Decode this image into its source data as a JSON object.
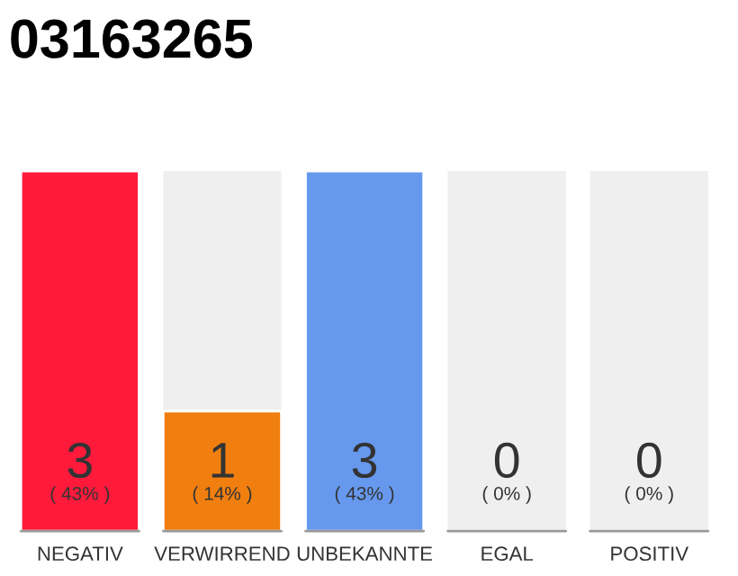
{
  "chart_data": {
    "type": "bar",
    "title": "03163265",
    "categories": [
      "NEGATIV",
      "VERWIRREND",
      "UNBEKANNTE",
      "EGAL",
      "POSITIV"
    ],
    "values": [
      3,
      1,
      3,
      0,
      0
    ],
    "colors": [
      "#ff1a3c",
      "#f07f0f",
      "#6699ee",
      null,
      null
    ],
    "data_labels": true,
    "annotations": [
      "( 43% )",
      "( 14% )",
      "( 43% )",
      "( 0% )",
      "( 0% )"
    ],
    "grid": false,
    "legend": false
  }
}
